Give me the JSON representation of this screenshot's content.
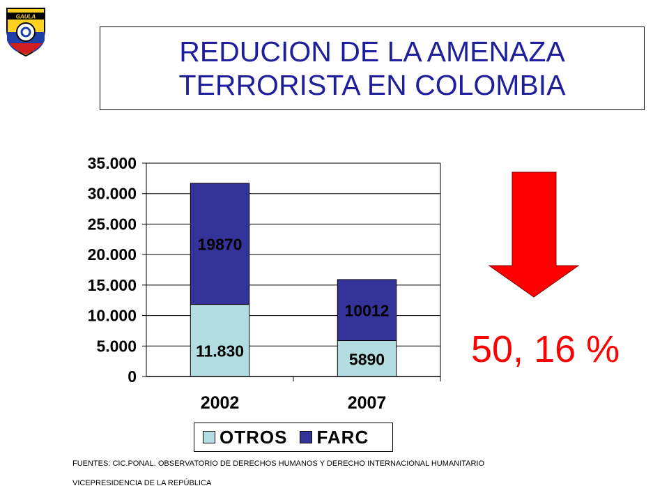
{
  "header": {
    "title_line1": "REDUCION DE LA AMENAZA",
    "title_line2": "TERRORISTA EN COLOMBIA",
    "logo_text": "GAULA"
  },
  "chart_data": {
    "type": "bar",
    "stacked": true,
    "categories": [
      "2002",
      "2007"
    ],
    "series": [
      {
        "name": "OTROS",
        "values": [
          11830,
          5890
        ],
        "labels": [
          "11.830",
          "5890"
        ],
        "color": "#b3dde0"
      },
      {
        "name": "FARC",
        "values": [
          19870,
          10012
        ],
        "labels": [
          "19870",
          "10012"
        ],
        "color": "#333399"
      }
    ],
    "ylim": [
      0,
      35000
    ],
    "yticks": [
      0,
      5000,
      10000,
      15000,
      20000,
      25000,
      30000,
      35000
    ],
    "ytick_labels": [
      "0",
      "5.000",
      "10.000",
      "15.000",
      "20.000",
      "25.000",
      "30.000",
      "35.000"
    ],
    "grid": true,
    "legend_position": "bottom"
  },
  "callout": {
    "reduction_text": "50, 16 %",
    "arrow_color": "#ff0000",
    "arrow_icon": "down-arrow-icon"
  },
  "footer": {
    "source_line1": "FUENTES: CIC.PONAL.  OBSERVATORIO  DE DERECHOS HUMANOS Y DERECHO INTERNACIONAL  HUMANITARIO",
    "source_line2": "VICEPRESIDENCIA  DE LA REPÚBLICA"
  }
}
